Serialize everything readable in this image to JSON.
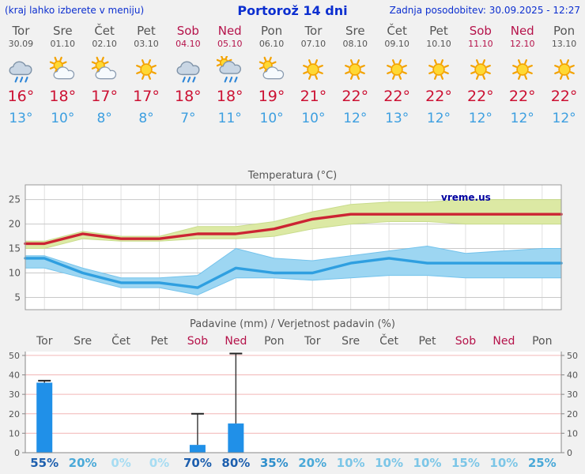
{
  "header": {
    "left": "(kraj lahko izberete v meniju)",
    "title": "Portorož 14 dni",
    "updated": "Zadnja posodobitev: 30.09.2025 - 12:27"
  },
  "watermark": "vreme.us",
  "days": {
    "names": [
      "Tor",
      "Sre",
      "Čet",
      "Pet",
      "Sob",
      "Ned",
      "Pon",
      "Tor",
      "Sre",
      "Čet",
      "Pet",
      "Sob",
      "Ned",
      "Pon"
    ],
    "dates": [
      "30.09",
      "01.10",
      "02.10",
      "03.10",
      "04.10",
      "05.10",
      "06.10",
      "07.10",
      "08.10",
      "09.10",
      "10.10",
      "11.10",
      "12.10",
      "13.10"
    ],
    "weekend": [
      4,
      5,
      11,
      12
    ],
    "icons": [
      "rain",
      "sun-cloud",
      "sun-cloud",
      "sun",
      "rain",
      "sun-rain",
      "sun-cloud",
      "sun",
      "sun",
      "sun",
      "sun",
      "sun",
      "sun",
      "sun"
    ],
    "tmax": [
      16,
      18,
      17,
      17,
      18,
      18,
      19,
      21,
      22,
      22,
      22,
      22,
      22,
      22
    ],
    "tmin": [
      13,
      10,
      8,
      8,
      7,
      11,
      10,
      10,
      12,
      13,
      12,
      12,
      12,
      12
    ],
    "degree": "°"
  },
  "chart_data": [
    {
      "type": "line",
      "title": "Temperatura (°C)",
      "categories": [
        "Tor 30.09",
        "Sre 01.10",
        "Čet 02.10",
        "Pet 03.10",
        "Sob 04.10",
        "Ned 05.10",
        "Pon 06.10",
        "Tor 07.10",
        "Sre 08.10",
        "Čet 09.10",
        "Pet 10.10",
        "Sob 11.10",
        "Ned 12.10",
        "Pon 13.10"
      ],
      "yticks": [
        5,
        10,
        15,
        20,
        25
      ],
      "ylim": [
        2.5,
        28
      ],
      "grid": true,
      "legend": "none",
      "series": [
        {
          "name": "max temperature",
          "values": [
            16,
            18,
            17,
            17,
            18,
            18,
            19,
            21,
            22,
            22,
            22,
            22,
            22,
            22
          ],
          "band_upper": [
            16.5,
            18.5,
            17.5,
            17.5,
            19.5,
            19.5,
            20.5,
            22.5,
            24,
            24.5,
            24.5,
            25,
            25,
            25
          ],
          "band_lower": [
            15,
            17,
            16.5,
            16.5,
            17,
            17,
            17.5,
            19,
            20,
            20.5,
            20.5,
            20,
            20,
            20
          ],
          "color": "#cc2433",
          "band_color": "#dce9a4",
          "band_edge": "#c9dc8c"
        },
        {
          "name": "min temperature",
          "values": [
            13,
            10,
            8,
            8,
            7,
            11,
            10,
            10,
            12,
            13,
            12,
            12,
            12,
            12
          ],
          "band_upper": [
            13.5,
            11,
            9,
            9,
            9.5,
            15,
            13,
            12.5,
            13.5,
            14.5,
            15.5,
            14,
            14.5,
            15
          ],
          "band_lower": [
            11,
            9,
            7,
            7,
            5.5,
            9,
            9,
            8.5,
            9,
            9.5,
            9.5,
            9,
            9,
            9
          ],
          "color": "#2f9fe0",
          "band_color": "#9dd6f2",
          "band_edge": "#74c3ec"
        }
      ]
    },
    {
      "type": "bar",
      "title": "Padavine (mm) / Verjetnost padavin (%)",
      "categories": [
        "Tor",
        "Sre",
        "Čet",
        "Pet",
        "Sob",
        "Ned",
        "Pon",
        "Tor",
        "Sre",
        "Čet",
        "Pet",
        "Sob",
        "Ned",
        "Pon"
      ],
      "weekend": [
        4,
        5,
        11,
        12
      ],
      "values": [
        36,
        0,
        0,
        0,
        4,
        15,
        0,
        0,
        0,
        0,
        0,
        0,
        0,
        0
      ],
      "range_max": [
        37,
        null,
        null,
        null,
        20,
        51,
        null,
        null,
        null,
        null,
        null,
        null,
        null,
        null
      ],
      "probabilities": [
        55,
        20,
        0,
        0,
        70,
        80,
        35,
        20,
        10,
        10,
        10,
        15,
        10,
        25
      ],
      "yticks": [
        0,
        10,
        20,
        30,
        40,
        50
      ],
      "ylim": [
        0,
        52
      ],
      "bar_color": "#2090e8"
    }
  ],
  "colors": {
    "header_blue": "#0c2fd0",
    "weekend": "#b5124a",
    "tmax_red": "#cc1133",
    "tmin_blue": "#3d9fe0",
    "axis_text": "#555555",
    "grid_pink": "#f2b6b6",
    "prob_high": "#1d5fae",
    "prob_mid": "#2f8fcc",
    "prob_low": "#4aa9d8",
    "prob_faint": "#7cc6e7",
    "prob_zero": "#a6dcf2"
  }
}
